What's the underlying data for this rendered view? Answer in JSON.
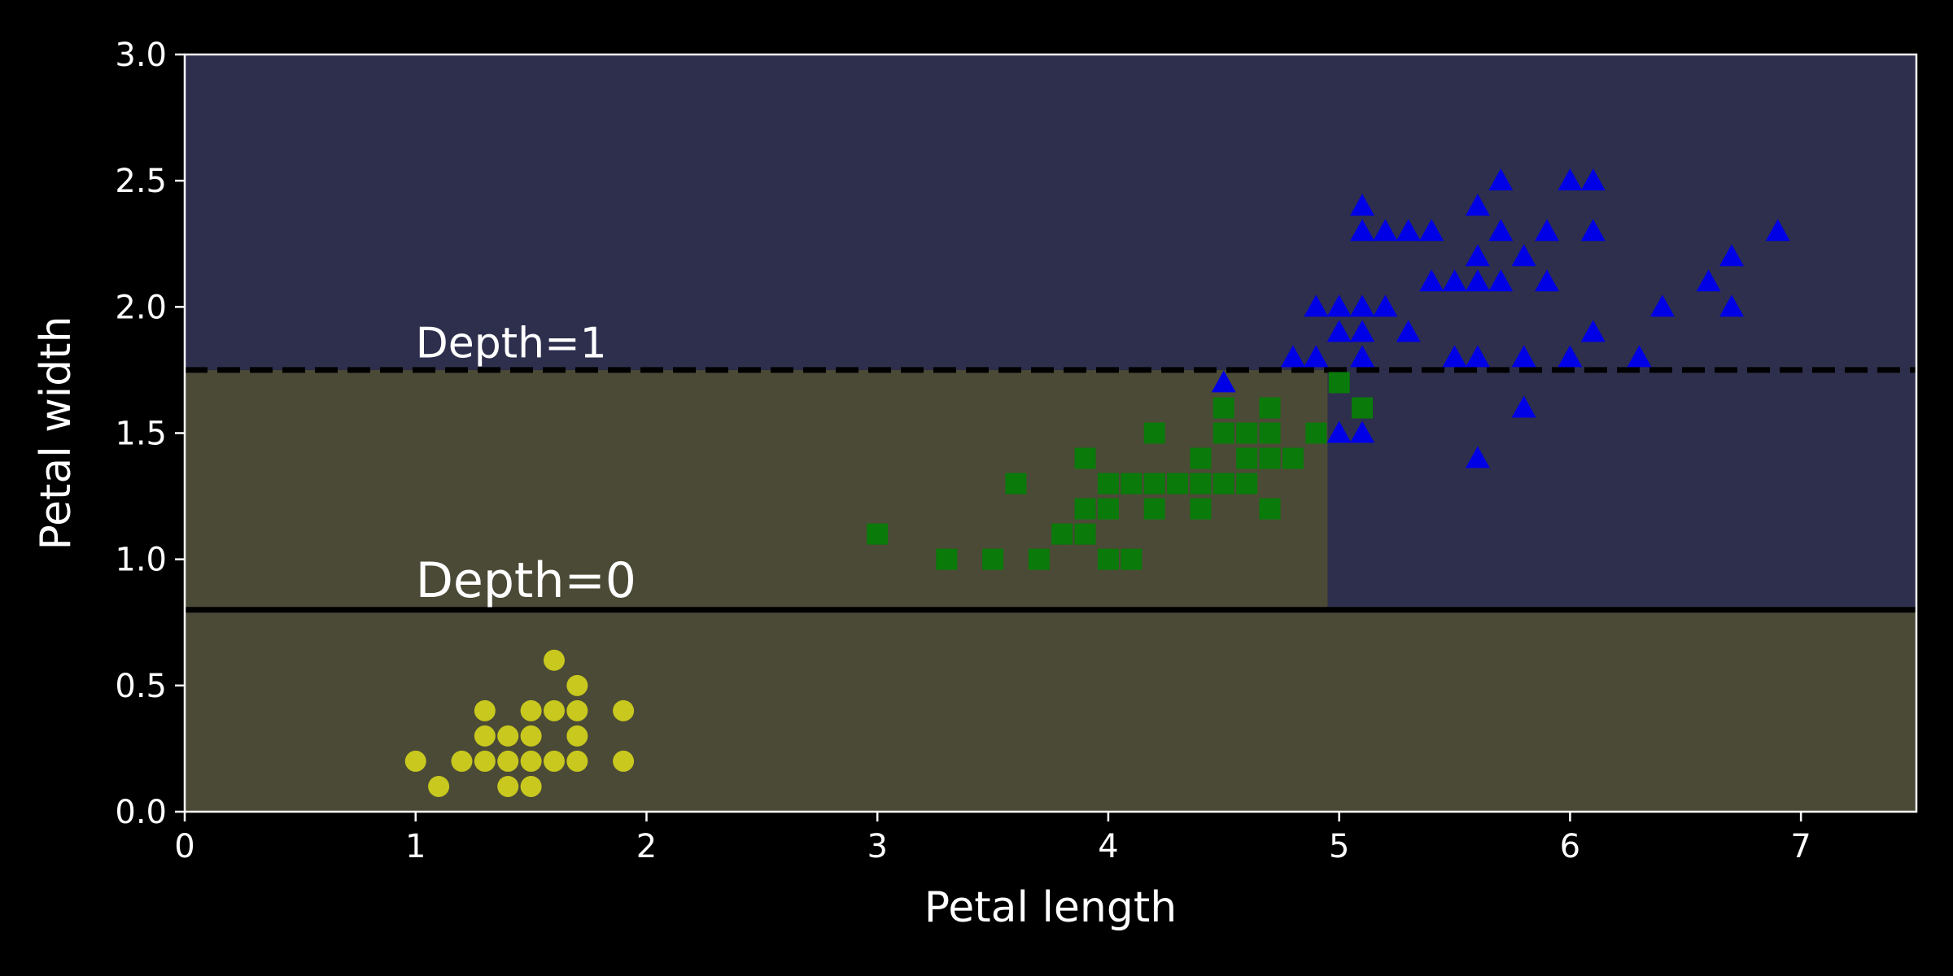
{
  "chart_data": {
    "type": "scatter",
    "xlabel": "Petal length",
    "ylabel": "Petal width",
    "xlim": [
      0,
      7.5
    ],
    "ylim": [
      0,
      3
    ],
    "x_ticks": [
      "0",
      "1",
      "2",
      "3",
      "4",
      "5",
      "6",
      "7"
    ],
    "y_ticks": [
      "0.0",
      "0.5",
      "1.0",
      "1.5",
      "2.0",
      "2.5",
      "3.0"
    ],
    "grid": false,
    "background_color": "#000000",
    "regions": [
      {
        "x": [
          0,
          7.5
        ],
        "y": [
          0,
          0.8
        ],
        "color": "#4b4a36"
      },
      {
        "x": [
          0,
          4.95
        ],
        "y": [
          0.8,
          1.75
        ],
        "color": "#4b4a36"
      },
      {
        "x": [
          4.95,
          7.5
        ],
        "y": [
          0.8,
          1.75
        ],
        "color": "#2e2f4d"
      },
      {
        "x": [
          0,
          7.5
        ],
        "y": [
          1.75,
          3
        ],
        "color": "#2e2f4d"
      }
    ],
    "boundaries": [
      {
        "orientation": "horizontal",
        "value": 0.8,
        "style": "solid",
        "color": "#000000"
      },
      {
        "orientation": "horizontal",
        "value": 1.75,
        "style": "dashed",
        "color": "#000000"
      }
    ],
    "annotations": [
      {
        "text": "Depth=0",
        "x": 1.0,
        "y": 0.85,
        "size": "large"
      },
      {
        "text": "Depth=1",
        "x": 1.0,
        "y": 1.8,
        "size": "small"
      }
    ],
    "series": [
      {
        "marker": "circle",
        "color": "#c8c81e",
        "points": [
          [
            1.0,
            0.2
          ],
          [
            1.1,
            0.1
          ],
          [
            1.2,
            0.2
          ],
          [
            1.3,
            0.2
          ],
          [
            1.3,
            0.3
          ],
          [
            1.3,
            0.4
          ],
          [
            1.4,
            0.1
          ],
          [
            1.4,
            0.2
          ],
          [
            1.4,
            0.3
          ],
          [
            1.5,
            0.1
          ],
          [
            1.5,
            0.2
          ],
          [
            1.5,
            0.3
          ],
          [
            1.5,
            0.4
          ],
          [
            1.6,
            0.2
          ],
          [
            1.6,
            0.4
          ],
          [
            1.6,
            0.6
          ],
          [
            1.7,
            0.2
          ],
          [
            1.7,
            0.3
          ],
          [
            1.7,
            0.4
          ],
          [
            1.7,
            0.5
          ],
          [
            1.9,
            0.2
          ],
          [
            1.9,
            0.4
          ]
        ]
      },
      {
        "marker": "square",
        "color": "#0a7a0a",
        "points": [
          [
            3.0,
            1.1
          ],
          [
            3.3,
            1.0
          ],
          [
            3.5,
            1.0
          ],
          [
            3.6,
            1.3
          ],
          [
            3.7,
            1.0
          ],
          [
            3.8,
            1.1
          ],
          [
            3.9,
            1.1
          ],
          [
            3.9,
            1.2
          ],
          [
            3.9,
            1.4
          ],
          [
            4.0,
            1.0
          ],
          [
            4.0,
            1.2
          ],
          [
            4.0,
            1.3
          ],
          [
            4.1,
            1.0
          ],
          [
            4.1,
            1.3
          ],
          [
            4.2,
            1.2
          ],
          [
            4.2,
            1.3
          ],
          [
            4.2,
            1.5
          ],
          [
            4.3,
            1.3
          ],
          [
            4.4,
            1.2
          ],
          [
            4.4,
            1.3
          ],
          [
            4.4,
            1.4
          ],
          [
            4.5,
            1.3
          ],
          [
            4.5,
            1.5
          ],
          [
            4.5,
            1.6
          ],
          [
            4.6,
            1.3
          ],
          [
            4.6,
            1.4
          ],
          [
            4.6,
            1.5
          ],
          [
            4.7,
            1.2
          ],
          [
            4.7,
            1.4
          ],
          [
            4.7,
            1.5
          ],
          [
            4.7,
            1.6
          ],
          [
            4.8,
            1.4
          ],
          [
            4.9,
            1.5
          ],
          [
            5.0,
            1.7
          ],
          [
            5.1,
            1.6
          ]
        ]
      },
      {
        "marker": "triangle",
        "color": "#0000e6",
        "points": [
          [
            4.5,
            1.7
          ],
          [
            4.8,
            1.8
          ],
          [
            4.9,
            1.8
          ],
          [
            4.9,
            2.0
          ],
          [
            5.0,
            1.5
          ],
          [
            5.0,
            1.9
          ],
          [
            5.0,
            2.0
          ],
          [
            5.1,
            1.5
          ],
          [
            5.1,
            1.8
          ],
          [
            5.1,
            1.9
          ],
          [
            5.1,
            2.0
          ],
          [
            5.1,
            2.3
          ],
          [
            5.1,
            2.4
          ],
          [
            5.2,
            2.0
          ],
          [
            5.2,
            2.3
          ],
          [
            5.3,
            1.9
          ],
          [
            5.3,
            2.3
          ],
          [
            5.4,
            2.1
          ],
          [
            5.4,
            2.3
          ],
          [
            5.5,
            1.8
          ],
          [
            5.5,
            2.1
          ],
          [
            5.6,
            1.4
          ],
          [
            5.6,
            1.8
          ],
          [
            5.6,
            2.1
          ],
          [
            5.6,
            2.2
          ],
          [
            5.6,
            2.4
          ],
          [
            5.7,
            2.1
          ],
          [
            5.7,
            2.3
          ],
          [
            5.7,
            2.5
          ],
          [
            5.8,
            1.6
          ],
          [
            5.8,
            1.8
          ],
          [
            5.8,
            2.2
          ],
          [
            5.9,
            2.1
          ],
          [
            5.9,
            2.3
          ],
          [
            6.0,
            1.8
          ],
          [
            6.0,
            2.5
          ],
          [
            6.1,
            1.9
          ],
          [
            6.1,
            2.3
          ],
          [
            6.1,
            2.5
          ],
          [
            6.3,
            1.8
          ],
          [
            6.4,
            2.0
          ],
          [
            6.6,
            2.1
          ],
          [
            6.7,
            2.0
          ],
          [
            6.7,
            2.2
          ],
          [
            6.9,
            2.3
          ]
        ]
      }
    ]
  }
}
